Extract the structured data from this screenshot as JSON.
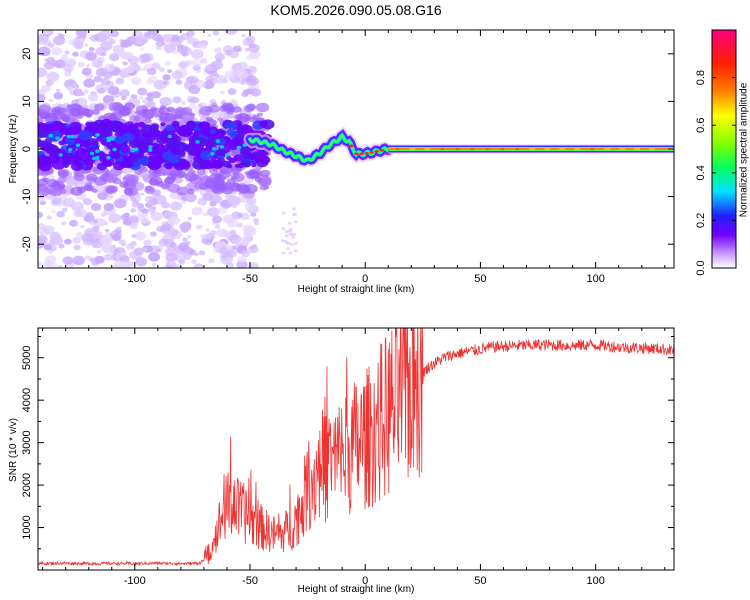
{
  "title": "KOM5.2026.090.05.08.G16",
  "chart_data": [
    {
      "type": "heatmap",
      "name": "spectrogram",
      "xlabel": "Height of straight line (km)",
      "ylabel": "Frequency (Hz)",
      "xlim": [
        -142,
        134
      ],
      "ylim": [
        -25,
        25
      ],
      "xticks": [
        -100,
        -50,
        0,
        50,
        100
      ],
      "yticks": [
        -20,
        -10,
        0,
        10,
        20
      ],
      "colorbar": {
        "label": "Normalized spectral amplitude",
        "range": [
          0,
          1
        ],
        "ticks": [
          0.0,
          0.2,
          0.4,
          0.6,
          0.8
        ],
        "tick_labels": [
          "0.0",
          "0.2",
          "0.4",
          "0.6",
          "0.8"
        ],
        "colors": [
          "#ffffff",
          "#cc99ff",
          "#7000ff",
          "#2020ff",
          "#00e0ff",
          "#00ff60",
          "#80ff00",
          "#ffff00",
          "#ff8000",
          "#ff2000",
          "#ff0080"
        ]
      },
      "ridge": [
        [
          -50,
          2
        ],
        [
          -45,
          1.5
        ],
        [
          -40,
          0.8
        ],
        [
          -35,
          -0.5
        ],
        [
          -30,
          -1.5
        ],
        [
          -25,
          -2.5
        ],
        [
          -20,
          -1
        ],
        [
          -15,
          1
        ],
        [
          -10,
          2.5
        ],
        [
          -7,
          1.5
        ],
        [
          -4,
          -1
        ],
        [
          0,
          -1
        ],
        [
          5,
          -0.5
        ],
        [
          10,
          0
        ],
        [
          134,
          0
        ]
      ]
    },
    {
      "type": "line",
      "name": "snr",
      "xlabel": "Height of straight line (km)",
      "ylabel": "SNR (10 * v/v)",
      "xlim": [
        -142,
        134
      ],
      "ylim": [
        0,
        5700
      ],
      "xticks": [
        -100,
        -50,
        0,
        50,
        100
      ],
      "yticks": [
        1000,
        2000,
        3000,
        4000,
        5000
      ],
      "color": "#ee3333",
      "series": [
        {
          "name": "SNR",
          "x": [
            -142,
            -130,
            -120,
            -110,
            -100,
            -90,
            -80,
            -72,
            -68,
            -65,
            -62,
            -60,
            -57,
            -55,
            -52,
            -50,
            -47,
            -45,
            -42,
            -40,
            -37,
            -35,
            -32,
            -30,
            -27,
            -25,
            -22,
            -20,
            -17,
            -15,
            -12,
            -10,
            -7,
            -5,
            -3,
            -1,
            1,
            4,
            7,
            10,
            13,
            16,
            19,
            22,
            25,
            28,
            31,
            34,
            37,
            40,
            45,
            50,
            55,
            60,
            65,
            70,
            75,
            80,
            85,
            90,
            95,
            100,
            105,
            110,
            115,
            120,
            125,
            130,
            134
          ],
          "y": [
            150,
            160,
            150,
            155,
            150,
            160,
            150,
            160,
            300,
            800,
            1300,
            1500,
            1600,
            1400,
            1300,
            1200,
            1100,
            1000,
            900,
            850,
            800,
            900,
            1000,
            1200,
            1600,
            2000,
            2200,
            2300,
            2400,
            2500,
            2600,
            2700,
            2800,
            2900,
            3000,
            3050,
            3100,
            3300,
            3500,
            3700,
            3900,
            4100,
            4300,
            4500,
            4650,
            4800,
            4900,
            5000,
            5050,
            5100,
            5150,
            5200,
            5250,
            5270,
            5280,
            5290,
            5300,
            5300,
            5290,
            5280,
            5300,
            5300,
            5280,
            5250,
            5240,
            5230,
            5220,
            5200,
            5180
          ]
        }
      ]
    }
  ]
}
